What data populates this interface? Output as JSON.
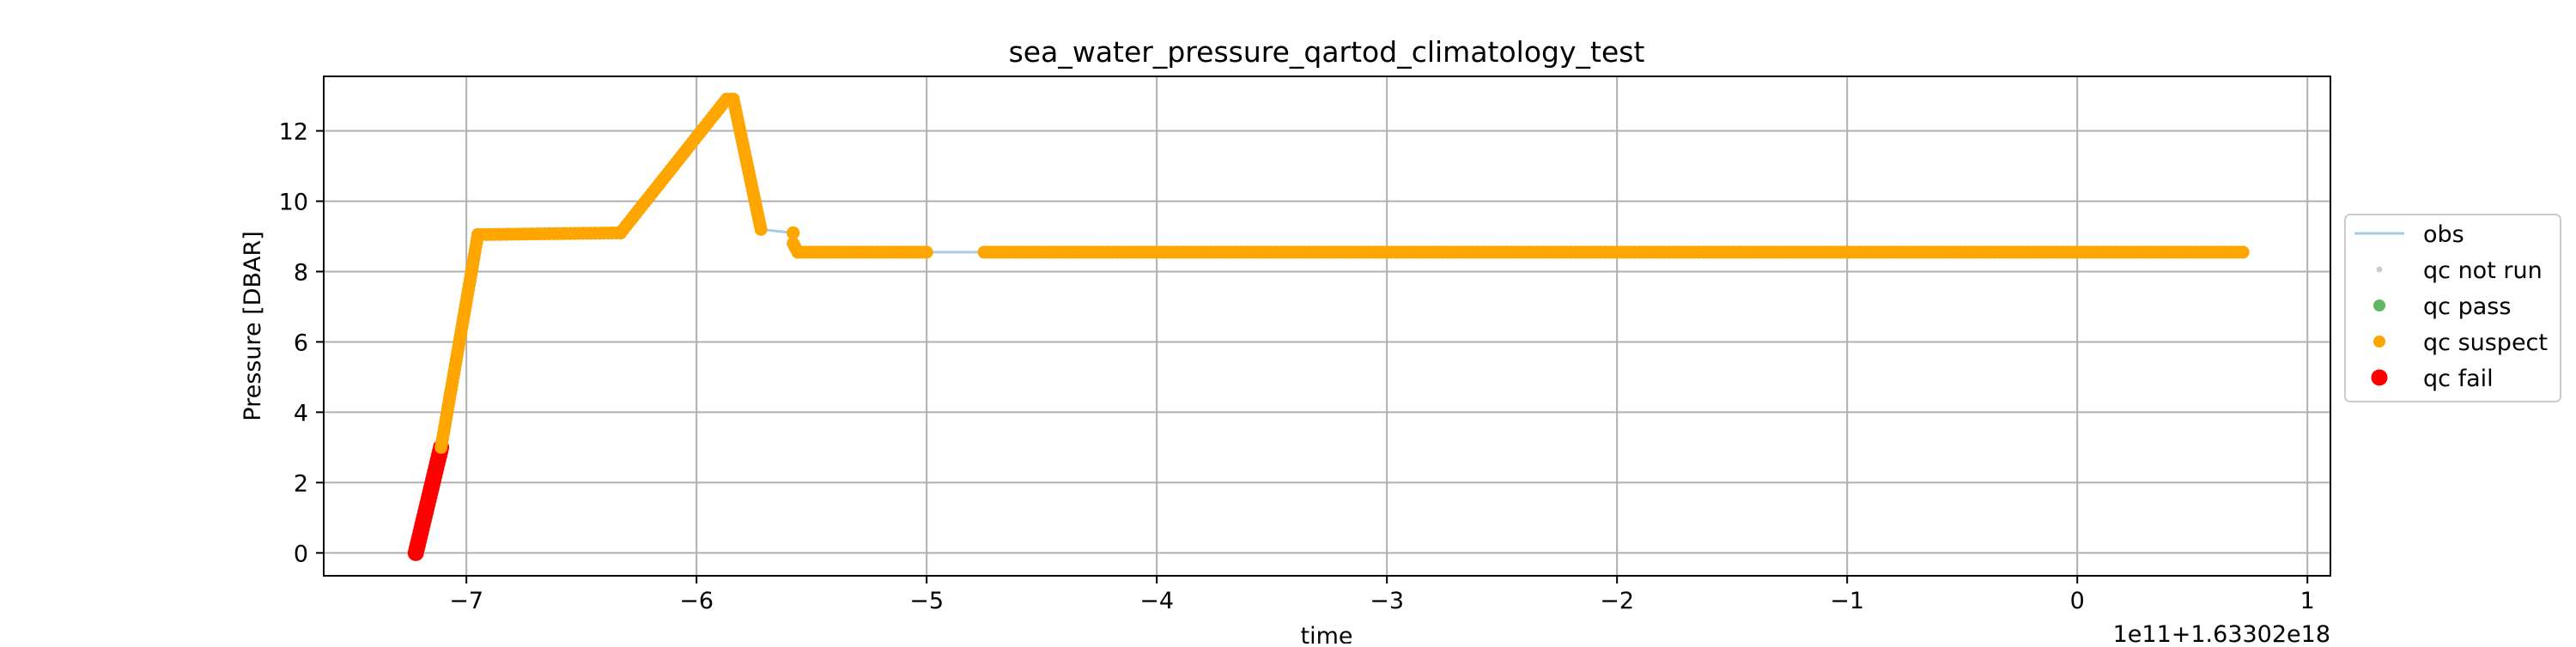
{
  "chart_data": {
    "type": "scatter",
    "title": "sea_water_pressure_qartod_climatology_test",
    "xlabel": "time",
    "ylabel": "Pressure [DBAR]",
    "x_offset_text": "1e11+1.63302e18",
    "xlim": [
      -7.62,
      1.1
    ],
    "ylim": [
      -0.65,
      13.55
    ],
    "xticks": [
      -7,
      -6,
      -5,
      -4,
      -3,
      -2,
      -1,
      0,
      1
    ],
    "xtick_labels": [
      "−7",
      "−6",
      "−5",
      "−4",
      "−3",
      "−2",
      "−1",
      "0",
      "1"
    ],
    "yticks": [
      0,
      2,
      4,
      6,
      8,
      10,
      12
    ],
    "ytick_labels": [
      "0",
      "2",
      "4",
      "6",
      "8",
      "10",
      "12"
    ],
    "grid": true,
    "legend_position": "center right, outside plot",
    "legend": [
      {
        "label": "obs",
        "color": "#a6cee3",
        "marker": "line"
      },
      {
        "label": "qc not run",
        "color": "#cccccc",
        "marker": "dot-small"
      },
      {
        "label": "qc pass",
        "color": "#2ca02c",
        "marker": "dot"
      },
      {
        "label": "qc suspect",
        "color": "#ffa500",
        "marker": "dot"
      },
      {
        "label": "qc fail",
        "color": "#ff0000",
        "marker": "dot-large"
      }
    ],
    "series": [
      {
        "name": "obs",
        "style": "line",
        "color": "#a6cee3",
        "x": [
          -7.22,
          -7.11,
          -6.95,
          -6.33,
          -5.87,
          -5.84,
          -5.72,
          -5.58,
          -5.56,
          -5.0,
          -4.75,
          0.72
        ],
        "y": [
          0.0,
          3.0,
          9.05,
          9.1,
          12.9,
          12.9,
          9.2,
          9.1,
          8.55,
          8.55,
          8.55,
          8.55
        ]
      },
      {
        "name": "qc fail",
        "style": "dense-segments",
        "color": "#ff0000",
        "segments": [
          {
            "x": [
              -7.22,
              -7.11
            ],
            "y": [
              0.0,
              3.0
            ]
          }
        ]
      },
      {
        "name": "qc suspect",
        "style": "dense-segments",
        "color": "#ffa500",
        "segments": [
          {
            "x": [
              -7.11,
              -6.95
            ],
            "y": [
              3.0,
              9.05
            ]
          },
          {
            "x": [
              -6.95,
              -6.33
            ],
            "y": [
              9.05,
              9.1
            ]
          },
          {
            "x": [
              -6.33,
              -5.87
            ],
            "y": [
              9.1,
              12.9
            ]
          },
          {
            "x": [
              -5.87,
              -5.84
            ],
            "y": [
              12.9,
              12.9
            ]
          },
          {
            "x": [
              -5.84,
              -5.72
            ],
            "y": [
              12.9,
              9.2
            ]
          },
          {
            "x": [
              -5.58,
              -5.58
            ],
            "y": [
              9.1,
              9.1
            ]
          },
          {
            "x": [
              -5.58,
              -5.56
            ],
            "y": [
              8.8,
              8.55
            ]
          },
          {
            "x": [
              -5.56,
              -5.0
            ],
            "y": [
              8.55,
              8.55
            ]
          },
          {
            "x": [
              -4.75,
              0.72
            ],
            "y": [
              8.55,
              8.55
            ]
          }
        ]
      }
    ]
  }
}
